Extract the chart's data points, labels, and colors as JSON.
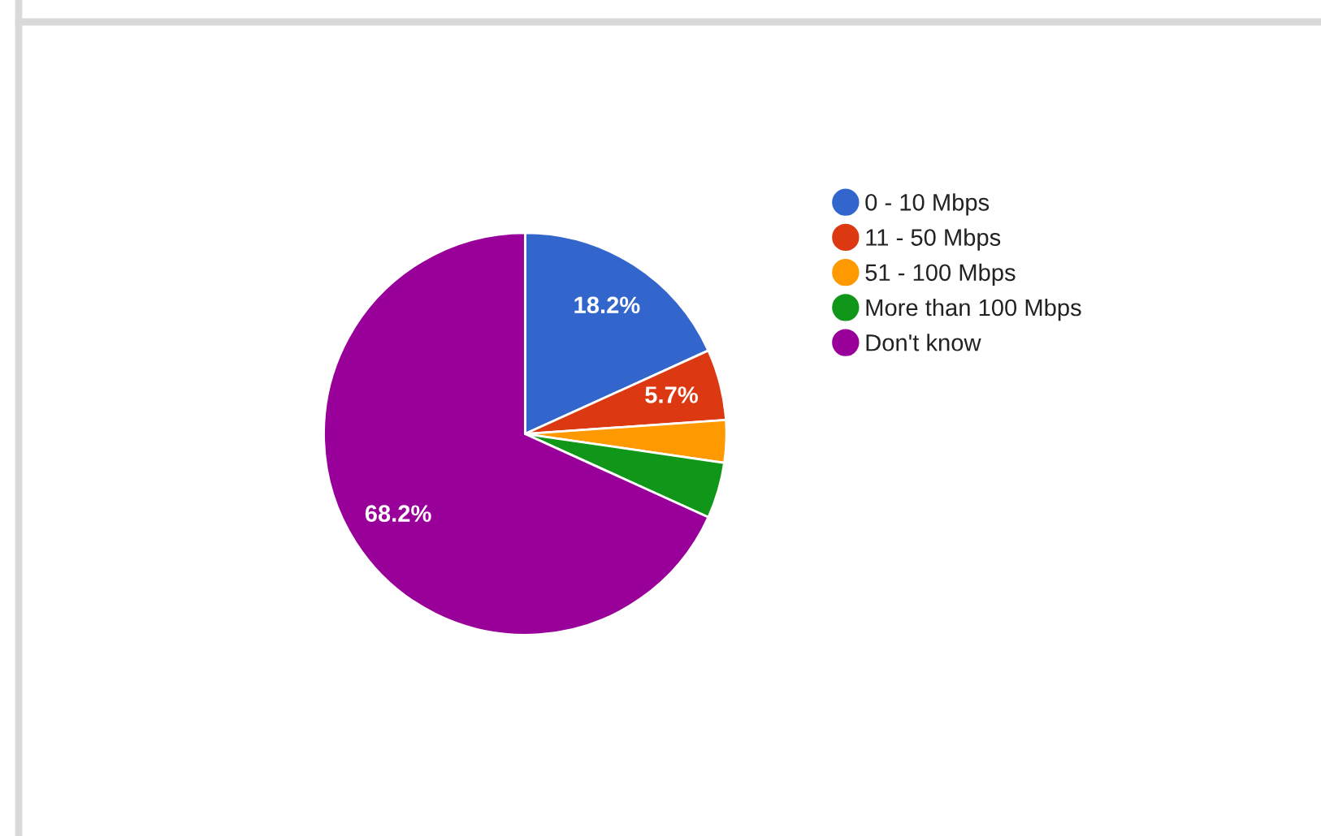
{
  "chart_data": {
    "type": "pie",
    "categories": [
      "0 - 10 Mbps",
      "11 - 50 Mbps",
      "51 - 100 Mbps",
      "More than 100 Mbps",
      "Don't know"
    ],
    "values": [
      18.2,
      5.7,
      3.4,
      4.5,
      68.2
    ],
    "colors": [
      "#3366cc",
      "#dc3912",
      "#ff9900",
      "#109618",
      "#990099"
    ],
    "value_labels": [
      "18.2%",
      "5.7%",
      null,
      null,
      "68.2%"
    ],
    "legend": "right"
  }
}
